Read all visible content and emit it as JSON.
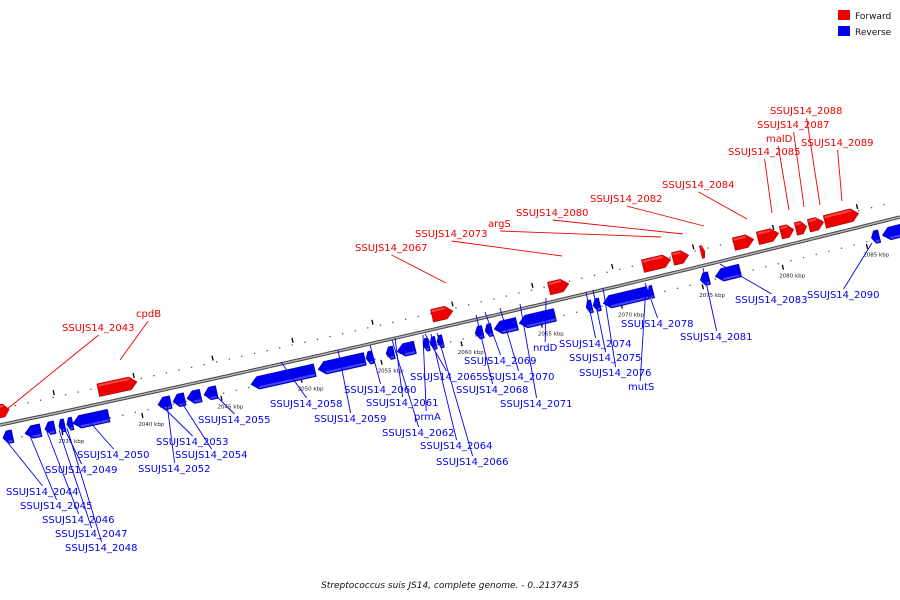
{
  "caption": {
    "organism": "Streptococcus suis JS14, complete genome.",
    "range": " - 0..2137435"
  },
  "legend": [
    {
      "label": "Forward",
      "color": "#ee0000"
    },
    {
      "label": "Reverse",
      "color": "#0000ee"
    }
  ],
  "colors": {
    "forward": "#ee0000",
    "reverse": "#0000ee",
    "backbone": "#888888"
  },
  "ticks": [
    "2035 kbp",
    "2040 kbp",
    "2045 kbp",
    "2050 kbp",
    "2055 kbp",
    "2060 kbp",
    "2065 kbp",
    "2070 kbp",
    "2075 kbp",
    "2080 kbp",
    "2085 kbp"
  ],
  "forward_genes": [
    "SSUJS14_2043",
    "cpdB",
    "SSUJS14_2067",
    "SSUJS14_2073",
    "argS",
    "SSUJS14_2080",
    "SSUJS14_2082",
    "SSUJS14_2084",
    "SSUJS14_2085",
    "malD",
    "SSUJS14_2087",
    "SSUJS14_2088",
    "SSUJS14_2089"
  ],
  "reverse_genes": [
    "SSUJS14_2044",
    "SSUJS14_2045",
    "SSUJS14_2046",
    "SSUJS14_2047",
    "SSUJS14_2048",
    "SSUJS14_2049",
    "SSUJS14_2050",
    "SSUJS14_2052",
    "SSUJS14_2053",
    "SSUJS14_2054",
    "SSUJS14_2055",
    "SSUJS14_2058",
    "SSUJS14_2059",
    "SSUJS14_2060",
    "SSUJS14_2061",
    "prmA",
    "SSUJS14_2062",
    "SSUJS14_2064",
    "SSUJS14_2065",
    "SSUJS14_2066",
    "SSUJS14_2068",
    "SSUJS14_2069",
    "SSUJS14_2070",
    "SSUJS14_2071",
    "nrdD",
    "SSUJS14_2074",
    "SSUJS14_2075",
    "SSUJS14_2076",
    "mutS",
    "SSUJS14_2078",
    "SSUJS14_2081",
    "SSUJS14_2083",
    "SSUJS14_2090"
  ]
}
